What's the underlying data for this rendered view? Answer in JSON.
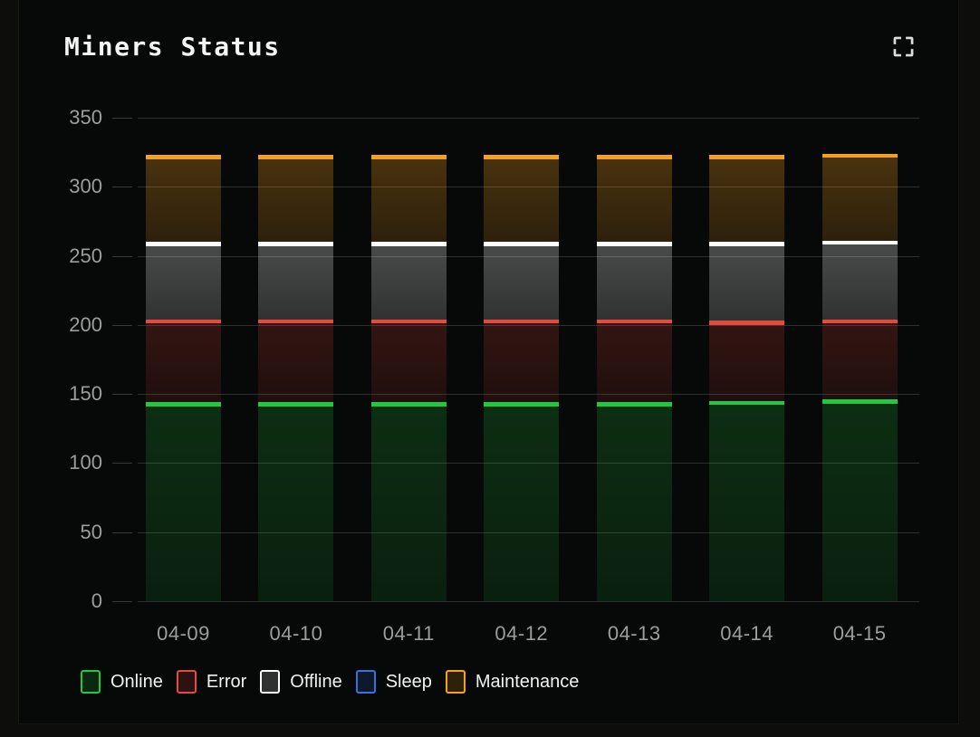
{
  "header": {
    "title": "Miners Status"
  },
  "chart_data": {
    "type": "bar",
    "stacked": true,
    "title": "Miners Status",
    "categories": [
      "04-09",
      "04-10",
      "04-11",
      "04-12",
      "04-13",
      "04-14",
      "04-15"
    ],
    "series": [
      {
        "name": "Online",
        "color": "#22c840",
        "values": [
          144,
          144,
          144,
          144,
          144,
          145,
          146
        ]
      },
      {
        "name": "Error",
        "color": "#e9493a",
        "values": [
          60,
          60,
          60,
          60,
          60,
          58,
          58
        ]
      },
      {
        "name": "Offline",
        "color": "#ffffff",
        "values": [
          56,
          56,
          56,
          56,
          56,
          57,
          57
        ]
      },
      {
        "name": "Sleep",
        "color": "#3d6fe0",
        "values": [
          0,
          0,
          0,
          0,
          0,
          0,
          0
        ]
      },
      {
        "name": "Maintenance",
        "color": "#f6a11e",
        "values": [
          63,
          63,
          63,
          63,
          63,
          63,
          63
        ]
      }
    ],
    "xlabel": "",
    "ylabel": "",
    "ylim": [
      0,
      350
    ],
    "yticks": [
      0,
      50,
      100,
      150,
      200,
      250,
      300,
      350
    ],
    "grid": true,
    "legend_position": "bottom",
    "legend": [
      "Online",
      "Error",
      "Offline",
      "Sleep",
      "Maintenance"
    ],
    "colors": {
      "background": "#070808",
      "gridline": "rgba(255,255,255,0.16)",
      "axis_label": "#9d9d9d",
      "title_text": "#f5f5f5"
    }
  }
}
